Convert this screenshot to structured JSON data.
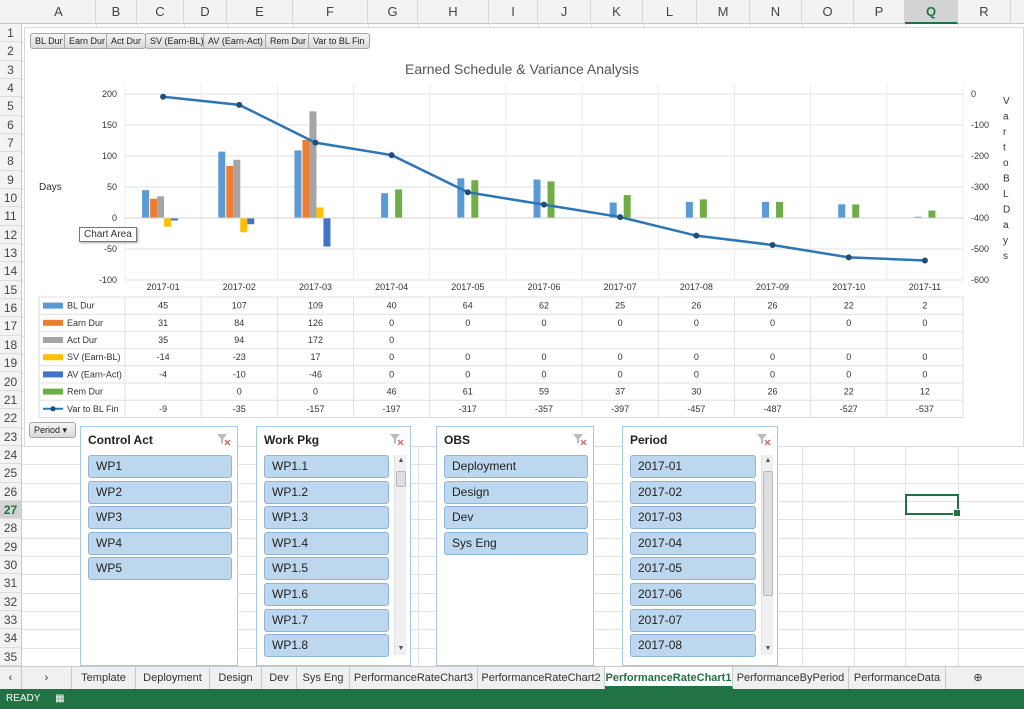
{
  "columns": [
    "A",
    "B",
    "C",
    "D",
    "E",
    "F",
    "G",
    "H",
    "I",
    "J",
    "K",
    "L",
    "M",
    "N",
    "O",
    "P",
    "Q",
    "R"
  ],
  "selected_column": "Q",
  "rows": [
    "1",
    "2",
    "3",
    "4",
    "5",
    "6",
    "7",
    "8",
    "9",
    "10",
    "11",
    "12",
    "13",
    "14",
    "15",
    "16",
    "17",
    "18",
    "19",
    "20",
    "21",
    "22",
    "23",
    "24",
    "25",
    "26",
    "27",
    "28",
    "29",
    "30",
    "31",
    "32",
    "33",
    "34",
    "35"
  ],
  "selected_row": "27",
  "filter_buttons": [
    "BL Dur",
    "Earn Dur",
    "Act Dur",
    "SV (Earn-BL)",
    "AV (Earn-Act)",
    "Rem Dur",
    "Var to BL Fin"
  ],
  "period_button": "Period",
  "tooltip": "Chart Area",
  "chart_data": {
    "type": "bar",
    "title": "Earned Schedule & Variance Analysis",
    "ylabel": "Days",
    "y2label": "Var to BL Days",
    "ylim": [
      -100,
      200
    ],
    "y2lim": [
      -600,
      0
    ],
    "yticks": [
      "200",
      "150",
      "100",
      "50",
      "0",
      "-50",
      "-100"
    ],
    "y2ticks": [
      "0",
      "-100",
      "-200",
      "-300",
      "-400",
      "-500",
      "-600"
    ],
    "categories": [
      "2017-01",
      "2017-02",
      "2017-03",
      "2017-04",
      "2017-05",
      "2017-06",
      "2017-07",
      "2017-08",
      "2017-09",
      "2017-10",
      "2017-11"
    ],
    "series": [
      {
        "name": "BL Dur",
        "color": "#5b9bd5",
        "values": [
          45,
          107,
          109,
          40,
          64,
          62,
          25,
          26,
          26,
          22,
          2
        ]
      },
      {
        "name": "Earn Dur",
        "color": "#ed7d31",
        "values": [
          31,
          84,
          126,
          0,
          0,
          0,
          0,
          0,
          0,
          0,
          0
        ]
      },
      {
        "name": "Act Dur",
        "color": "#a5a5a5",
        "values": [
          35,
          94,
          172,
          0,
          null,
          null,
          null,
          null,
          null,
          null,
          null
        ]
      },
      {
        "name": "SV (Earn-BL)",
        "color": "#ffc000",
        "values": [
          -14,
          -23,
          17,
          0,
          0,
          0,
          0,
          0,
          0,
          0,
          0
        ]
      },
      {
        "name": "AV (Earn-Act)",
        "color": "#4472c4",
        "values": [
          -4,
          -10,
          -46,
          0,
          0,
          0,
          0,
          0,
          0,
          0,
          0
        ]
      },
      {
        "name": "Rem Dur",
        "color": "#70ad47",
        "values": [
          null,
          0,
          0,
          46,
          61,
          59,
          37,
          30,
          26,
          22,
          12
        ]
      },
      {
        "name": "Var to BL Fin",
        "color": "#2e75b6",
        "type": "line",
        "values": [
          -9,
          -35,
          -157,
          -197,
          -317,
          -357,
          -397,
          -457,
          -487,
          -527,
          -537
        ]
      }
    ]
  },
  "slicers": [
    {
      "title": "Control Act",
      "items": [
        "WP1",
        "WP2",
        "WP3",
        "WP4",
        "WP5"
      ],
      "scroll": false
    },
    {
      "title": "Work Pkg",
      "items": [
        "WP1.1",
        "WP1.2",
        "WP1.3",
        "WP1.4",
        "WP1.5",
        "WP1.6",
        "WP1.7",
        "WP1.8"
      ],
      "scroll": true
    },
    {
      "title": "OBS",
      "items": [
        "Deployment",
        "Design",
        "Dev",
        "Sys Eng"
      ],
      "scroll": false
    },
    {
      "title": "Period",
      "items": [
        "2017-01",
        "2017-02",
        "2017-03",
        "2017-04",
        "2017-05",
        "2017-06",
        "2017-07",
        "2017-08"
      ],
      "scroll": true
    }
  ],
  "sheet_tabs": [
    "Template",
    "Deployment",
    "Design",
    "Dev",
    "Sys Eng",
    "PerformanceRateChart3",
    "PerformanceRateChart2",
    "PerformanceRateChart1",
    "PerformanceByPeriod",
    "PerformanceData"
  ],
  "active_tab": "PerformanceRateChart1",
  "status": {
    "mode": "READY"
  },
  "colors": {
    "accent": "#217346",
    "slicer_item": "#bdd7ee"
  }
}
